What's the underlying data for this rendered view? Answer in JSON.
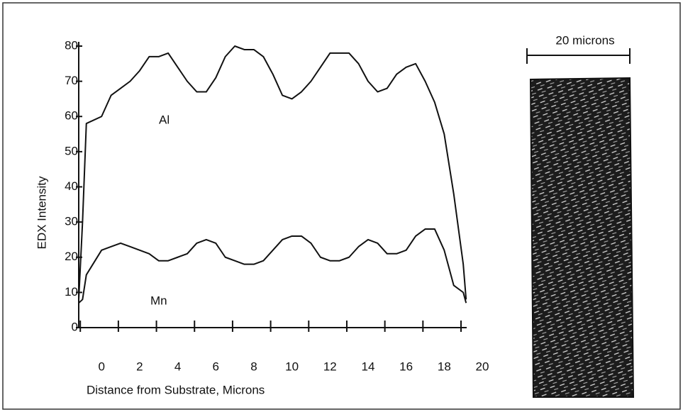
{
  "chart_data": {
    "type": "line",
    "x_label": "Distance from Substrate, Microns",
    "y_label": "EDX Intensity",
    "x": [
      -1.2,
      -1,
      -0.8,
      0,
      0.5,
      1,
      1.5,
      2,
      2.5,
      3,
      3.5,
      4,
      4.5,
      5,
      5.5,
      6,
      6.5,
      7,
      7.5,
      8,
      8.5,
      9,
      9.5,
      10,
      10.5,
      11,
      11.5,
      12,
      12.5,
      13,
      13.5,
      14,
      14.5,
      15,
      15.5,
      16,
      16.5,
      17,
      17.5,
      18,
      18.5,
      19,
      19.15
    ],
    "series": [
      {
        "name": "Al",
        "color": "#111111",
        "values": [
          8,
          30,
          58,
          60,
          66,
          68,
          70,
          73,
          77,
          77,
          78,
          74,
          70,
          67,
          67,
          71,
          77,
          80,
          79,
          79,
          77,
          72,
          66,
          65,
          67,
          70,
          74,
          78,
          78,
          78,
          75,
          70,
          67,
          68,
          72,
          74,
          75,
          70,
          64,
          55,
          38,
          18,
          8
        ]
      },
      {
        "name": "Mn",
        "color": "#111111",
        "values": [
          7,
          8,
          15,
          22,
          23,
          24,
          23,
          22,
          21,
          19,
          19,
          20,
          21,
          24,
          25,
          24,
          20,
          19,
          18,
          18,
          19,
          22,
          25,
          26,
          26,
          24,
          20,
          19,
          19,
          20,
          23,
          25,
          24,
          21,
          21,
          22,
          26,
          28,
          28,
          22,
          12,
          10,
          7
        ]
      }
    ],
    "xlim": [
      -1.2,
      20
    ],
    "xticks": [
      0,
      2,
      4,
      6,
      8,
      10,
      12,
      14,
      16,
      18,
      20
    ],
    "ylim": [
      0,
      80
    ],
    "yticks": [
      0,
      10,
      20,
      30,
      40,
      50,
      60,
      70,
      80
    ]
  },
  "micrograph": {
    "scale_label": "20 microns"
  }
}
